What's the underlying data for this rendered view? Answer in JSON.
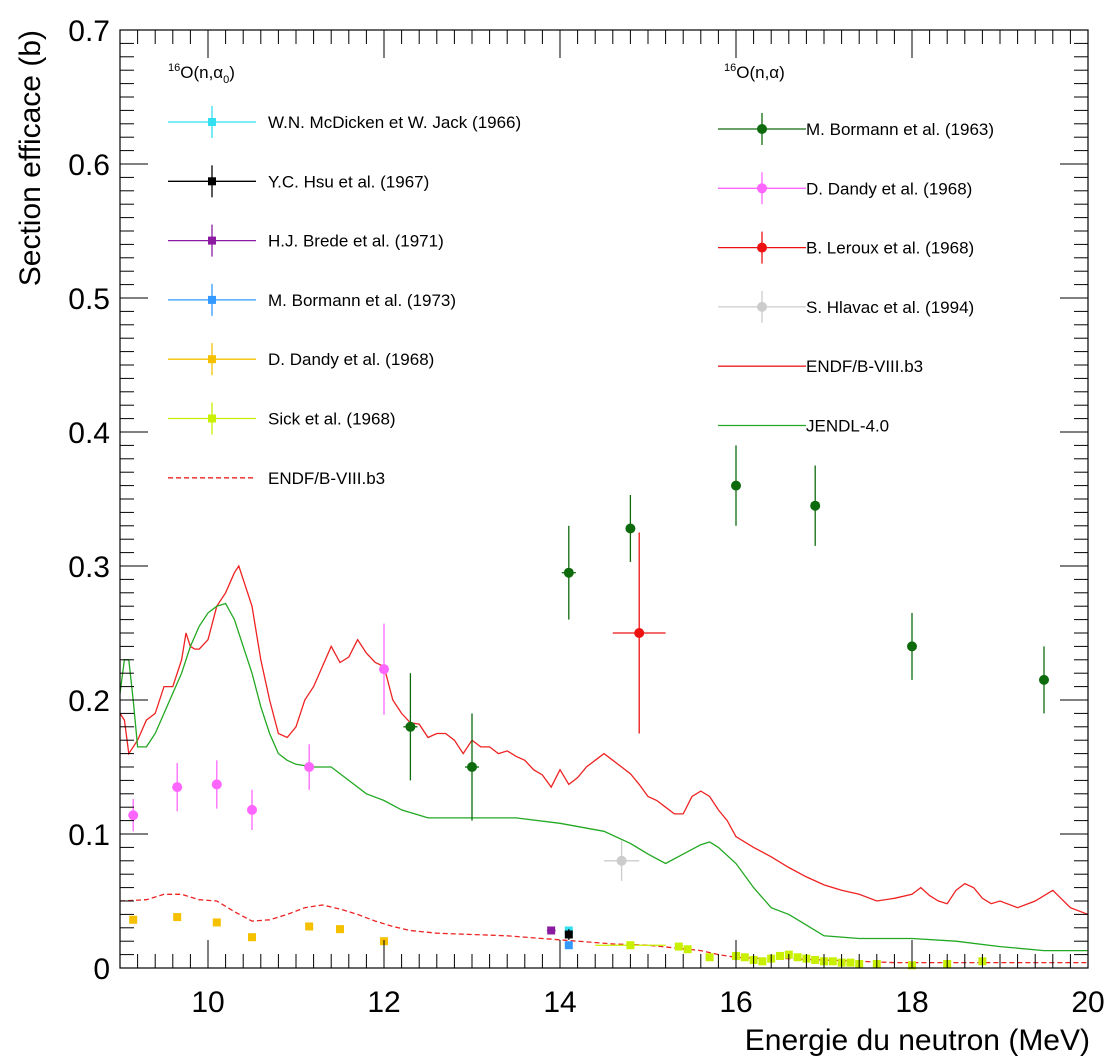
{
  "chart_data": {
    "type": "scatter",
    "xlabel": "Energie du neutron (MeV)",
    "ylabel": "Section efficace (b)",
    "xlim": [
      9,
      20
    ],
    "ylim": [
      0,
      0.7
    ],
    "xticks": [
      "10",
      "12",
      "14",
      "16",
      "18",
      "20"
    ],
    "yticks": [
      "0",
      "0.1",
      "0.2",
      "0.3",
      "0.4",
      "0.5",
      "0.6",
      "0.7"
    ],
    "legend_left_title": "16O(n,α0)",
    "legend_left_title_parts": {
      "mass": "16",
      "pre": "O(n,α",
      "sub": "0",
      "post": ")"
    },
    "legend_right_title": "16O(n,α)",
    "legend_right_title_parts": {
      "mass": "16",
      "pre": "O(n,α)"
    },
    "grid": false,
    "series": [
      {
        "name": "W.N. McDicken et W. Jack (1966)",
        "color": "#33e0f0",
        "marker": "square",
        "legend": "left",
        "points": [
          {
            "x": 14.1,
            "y": 0.028,
            "yerr": 0.003,
            "xerr": 0
          }
        ]
      },
      {
        "name": "Y.C. Hsu et al. (1967)",
        "color": "#000000",
        "marker": "square",
        "legend": "left",
        "points": [
          {
            "x": 14.1,
            "y": 0.025,
            "yerr": 0.004,
            "xerr": 0
          }
        ]
      },
      {
        "name": "H.J. Brede et al. (1971)",
        "color": "#8a1aa0",
        "marker": "square",
        "legend": "left",
        "points": [
          {
            "x": 13.9,
            "y": 0.028,
            "yerr": 0.002,
            "xerr": 0.05
          }
        ]
      },
      {
        "name": "M. Bormann et al. (1973)",
        "color": "#3399ff",
        "marker": "square",
        "legend": "left",
        "points": [
          {
            "x": 14.1,
            "y": 0.017,
            "yerr": 0.002,
            "xerr": 0
          }
        ]
      },
      {
        "name": "D. Dandy et al. (1968)",
        "color": "#f5c000",
        "marker": "square",
        "legend": "left",
        "points": [
          {
            "x": 9.15,
            "y": 0.036
          },
          {
            "x": 9.65,
            "y": 0.038
          },
          {
            "x": 10.1,
            "y": 0.034
          },
          {
            "x": 10.5,
            "y": 0.023
          },
          {
            "x": 11.15,
            "y": 0.031
          },
          {
            "x": 11.5,
            "y": 0.029
          },
          {
            "x": 12.0,
            "y": 0.02
          }
        ]
      },
      {
        "name": "Sick et al. (1968)",
        "color": "#c8f000",
        "marker": "square",
        "legend": "left",
        "points": [
          {
            "x": 14.8,
            "y": 0.017,
            "xerr": 0.4
          },
          {
            "x": 15.35,
            "y": 0.016
          },
          {
            "x": 15.45,
            "y": 0.014
          },
          {
            "x": 15.7,
            "y": 0.008
          },
          {
            "x": 16.0,
            "y": 0.009
          },
          {
            "x": 16.1,
            "y": 0.008
          },
          {
            "x": 16.2,
            "y": 0.006
          },
          {
            "x": 16.3,
            "y": 0.005
          },
          {
            "x": 16.4,
            "y": 0.007
          },
          {
            "x": 16.5,
            "y": 0.009
          },
          {
            "x": 16.6,
            "y": 0.01
          },
          {
            "x": 16.7,
            "y": 0.008
          },
          {
            "x": 16.8,
            "y": 0.007
          },
          {
            "x": 16.9,
            "y": 0.006
          },
          {
            "x": 17.0,
            "y": 0.005
          },
          {
            "x": 17.1,
            "y": 0.005
          },
          {
            "x": 17.2,
            "y": 0.004
          },
          {
            "x": 17.3,
            "y": 0.004
          },
          {
            "x": 17.4,
            "y": 0.003
          },
          {
            "x": 17.6,
            "y": 0.003
          },
          {
            "x": 18.0,
            "y": 0.002
          },
          {
            "x": 18.4,
            "y": 0.003
          },
          {
            "x": 18.8,
            "y": 0.005
          }
        ]
      },
      {
        "name": "M. Bormann et al. (1963)",
        "color": "#0d6b0d",
        "marker": "circle",
        "legend": "right",
        "points": [
          {
            "x": 12.3,
            "y": 0.18,
            "yerr": 0.04,
            "xerr": 0.08
          },
          {
            "x": 13.0,
            "y": 0.15,
            "yerr": 0.04,
            "xerr": 0.08
          },
          {
            "x": 14.1,
            "y": 0.295,
            "yerr": 0.035,
            "xerr": 0.08
          },
          {
            "x": 14.8,
            "y": 0.328,
            "yerr": 0.025,
            "xerr": 0.05
          },
          {
            "x": 16.0,
            "y": 0.36,
            "yerr": 0.03,
            "xerr": 0
          },
          {
            "x": 16.9,
            "y": 0.345,
            "yerr": 0.03,
            "xerr": 0
          },
          {
            "x": 18.0,
            "y": 0.24,
            "yerr": 0.025,
            "xerr": 0
          },
          {
            "x": 19.5,
            "y": 0.215,
            "yerr": 0.025,
            "xerr": 0
          }
        ]
      },
      {
        "name": "D. Dandy et al. (1968)",
        "color": "#ff66ff",
        "marker": "circle",
        "legend": "right",
        "points": [
          {
            "x": 9.15,
            "y": 0.114,
            "yerr": 0.012
          },
          {
            "x": 9.65,
            "y": 0.135,
            "yerr": 0.018
          },
          {
            "x": 10.1,
            "y": 0.137,
            "yerr": 0.018
          },
          {
            "x": 10.5,
            "y": 0.118,
            "yerr": 0.015
          },
          {
            "x": 11.15,
            "y": 0.15,
            "yerr": 0.017
          },
          {
            "x": 12.0,
            "y": 0.223,
            "yerr": 0.034
          }
        ]
      },
      {
        "name": "B. Leroux et al. (1968)",
        "color": "#ee1111",
        "marker": "circle",
        "legend": "right",
        "points": [
          {
            "x": 14.9,
            "y": 0.25,
            "yerr": 0.075,
            "xerr": 0.3
          }
        ]
      },
      {
        "name": "S. Hlavac et al. (1994)",
        "color": "#cccccc",
        "marker": "circle",
        "legend": "right",
        "points": [
          {
            "x": 14.7,
            "y": 0.08,
            "yerr": 0.015,
            "xerr": 0.2
          }
        ]
      }
    ],
    "curves": [
      {
        "name": "ENDF/B-VIII.b3",
        "color": "#ee2222",
        "style": "solid",
        "legend": "right",
        "x": [
          9.0,
          9.05,
          9.1,
          9.2,
          9.3,
          9.4,
          9.5,
          9.6,
          9.7,
          9.75,
          9.8,
          9.85,
          9.9,
          10.0,
          10.1,
          10.2,
          10.3,
          10.35,
          10.4,
          10.5,
          10.6,
          10.7,
          10.8,
          10.9,
          11.0,
          11.1,
          11.2,
          11.3,
          11.4,
          11.5,
          11.6,
          11.7,
          11.8,
          11.9,
          12.0,
          12.1,
          12.2,
          12.3,
          12.4,
          12.5,
          12.6,
          12.7,
          12.8,
          12.9,
          13.0,
          13.1,
          13.2,
          13.3,
          13.4,
          13.5,
          13.6,
          13.7,
          13.8,
          13.9,
          14.0,
          14.1,
          14.2,
          14.3,
          14.4,
          14.5,
          14.6,
          14.7,
          14.8,
          14.9,
          15.0,
          15.1,
          15.2,
          15.3,
          15.4,
          15.5,
          15.6,
          15.7,
          15.8,
          15.9,
          16.0,
          16.2,
          16.4,
          16.6,
          16.8,
          17.0,
          17.2,
          17.4,
          17.6,
          17.8,
          18.0,
          18.1,
          18.2,
          18.3,
          18.4,
          18.5,
          18.6,
          18.7,
          18.8,
          18.9,
          19.0,
          19.2,
          19.4,
          19.6,
          19.8,
          20.0
        ],
        "y": [
          0.19,
          0.185,
          0.16,
          0.17,
          0.185,
          0.19,
          0.21,
          0.21,
          0.23,
          0.25,
          0.24,
          0.238,
          0.238,
          0.245,
          0.27,
          0.28,
          0.295,
          0.3,
          0.29,
          0.27,
          0.23,
          0.2,
          0.175,
          0.172,
          0.18,
          0.2,
          0.21,
          0.225,
          0.24,
          0.228,
          0.232,
          0.245,
          0.235,
          0.228,
          0.225,
          0.2,
          0.19,
          0.183,
          0.182,
          0.172,
          0.175,
          0.175,
          0.17,
          0.16,
          0.17,
          0.165,
          0.165,
          0.16,
          0.162,
          0.158,
          0.155,
          0.148,
          0.144,
          0.135,
          0.148,
          0.137,
          0.142,
          0.15,
          0.155,
          0.16,
          0.155,
          0.15,
          0.145,
          0.137,
          0.128,
          0.125,
          0.12,
          0.115,
          0.115,
          0.128,
          0.132,
          0.128,
          0.118,
          0.11,
          0.098,
          0.09,
          0.083,
          0.075,
          0.068,
          0.062,
          0.058,
          0.055,
          0.05,
          0.052,
          0.055,
          0.06,
          0.054,
          0.05,
          0.048,
          0.058,
          0.063,
          0.06,
          0.052,
          0.048,
          0.05,
          0.045,
          0.05,
          0.058,
          0.045,
          0.04
        ]
      },
      {
        "name": "JENDL-4.0",
        "color": "#22a822",
        "style": "solid",
        "legend": "right",
        "x": [
          9.0,
          9.05,
          9.1,
          9.15,
          9.2,
          9.3,
          9.4,
          9.5,
          9.6,
          9.7,
          9.8,
          9.9,
          10.0,
          10.1,
          10.2,
          10.3,
          10.4,
          10.5,
          10.6,
          10.7,
          10.8,
          10.9,
          11.0,
          11.2,
          11.4,
          11.6,
          11.8,
          12.0,
          12.2,
          12.5,
          13.0,
          13.5,
          14.0,
          14.5,
          14.8,
          15.0,
          15.2,
          15.4,
          15.6,
          15.7,
          15.8,
          16.0,
          16.2,
          16.4,
          16.6,
          16.8,
          17.0,
          17.4,
          18.0,
          18.5,
          19.0,
          19.5,
          20.0
        ],
        "y": [
          0.205,
          0.23,
          0.23,
          0.2,
          0.165,
          0.165,
          0.175,
          0.19,
          0.205,
          0.22,
          0.24,
          0.255,
          0.265,
          0.27,
          0.272,
          0.26,
          0.24,
          0.22,
          0.195,
          0.175,
          0.16,
          0.155,
          0.152,
          0.15,
          0.15,
          0.14,
          0.13,
          0.125,
          0.118,
          0.112,
          0.112,
          0.112,
          0.108,
          0.102,
          0.093,
          0.085,
          0.078,
          0.085,
          0.092,
          0.094,
          0.09,
          0.078,
          0.06,
          0.045,
          0.04,
          0.032,
          0.024,
          0.022,
          0.022,
          0.02,
          0.016,
          0.013,
          0.013
        ]
      },
      {
        "name": "ENDF/B-VIII.b3",
        "color": "#ee2222",
        "style": "dashed",
        "legend": "left",
        "x": [
          9.0,
          9.3,
          9.5,
          9.7,
          9.9,
          10.1,
          10.3,
          10.5,
          10.7,
          10.9,
          11.1,
          11.3,
          11.5,
          11.7,
          11.9,
          12.1,
          12.3,
          12.6,
          13.0,
          13.4,
          13.8,
          14.2,
          14.6,
          15.0,
          15.3,
          15.6,
          15.8,
          16.0,
          16.3,
          16.6,
          17.0,
          17.4,
          17.8,
          18.2,
          18.6,
          19.0,
          19.5,
          20.0
        ],
        "y": [
          0.05,
          0.051,
          0.055,
          0.055,
          0.051,
          0.05,
          0.042,
          0.035,
          0.036,
          0.04,
          0.045,
          0.047,
          0.044,
          0.04,
          0.035,
          0.031,
          0.028,
          0.026,
          0.025,
          0.024,
          0.022,
          0.02,
          0.018,
          0.017,
          0.015,
          0.013,
          0.01,
          0.008,
          0.007,
          0.007,
          0.006,
          0.005,
          0.004,
          0.004,
          0.004,
          0.004,
          0.004,
          0.004
        ]
      }
    ]
  }
}
